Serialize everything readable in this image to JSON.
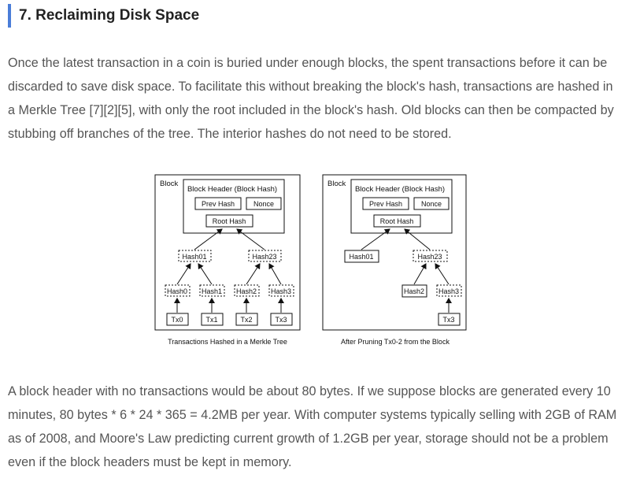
{
  "section_title": "7. Reclaiming Disk Space",
  "paragraph1": "Once the latest transaction in a coin is buried under enough blocks, the spent transactions before it can be discarded to save disk space. To facilitate this without breaking the block's hash, transactions are hashed in a Merkle Tree [7][2][5], with only the root included in the block's hash. Old blocks can then be compacted by stubbing off branches of the tree. The interior hashes do not need to be stored.",
  "paragraph2": "A block header with no transactions would be about 80 bytes. If we suppose blocks are generated every 10 minutes, 80 bytes * 6 * 24 * 365 = 4.2MB per year. With computer systems typically selling with 2GB of RAM as of 2008, and Moore's Law predicting current growth of 1.2GB per year, storage should not be a problem even if the block headers must be kept in memory.",
  "diagram_left": {
    "block_label": "Block",
    "header_label": "Block Header (Block Hash)",
    "prev_hash": "Prev Hash",
    "nonce": "Nonce",
    "root_hash": "Root Hash",
    "hash01": "Hash01",
    "hash23": "Hash23",
    "hash0": "Hash0",
    "hash1": "Hash1",
    "hash2": "Hash2",
    "hash3": "Hash3",
    "tx0": "Tx0",
    "tx1": "Tx1",
    "tx2": "Tx2",
    "tx3": "Tx3",
    "caption": "Transactions Hashed in a Merkle Tree"
  },
  "diagram_right": {
    "block_label": "Block",
    "header_label": "Block Header (Block Hash)",
    "prev_hash": "Prev Hash",
    "nonce": "Nonce",
    "root_hash": "Root Hash",
    "hash01": "Hash01",
    "hash23": "Hash23",
    "hash2": "Hash2",
    "hash3": "Hash3",
    "tx3": "Tx3",
    "caption": "After Pruning Tx0-2 from the Block"
  }
}
